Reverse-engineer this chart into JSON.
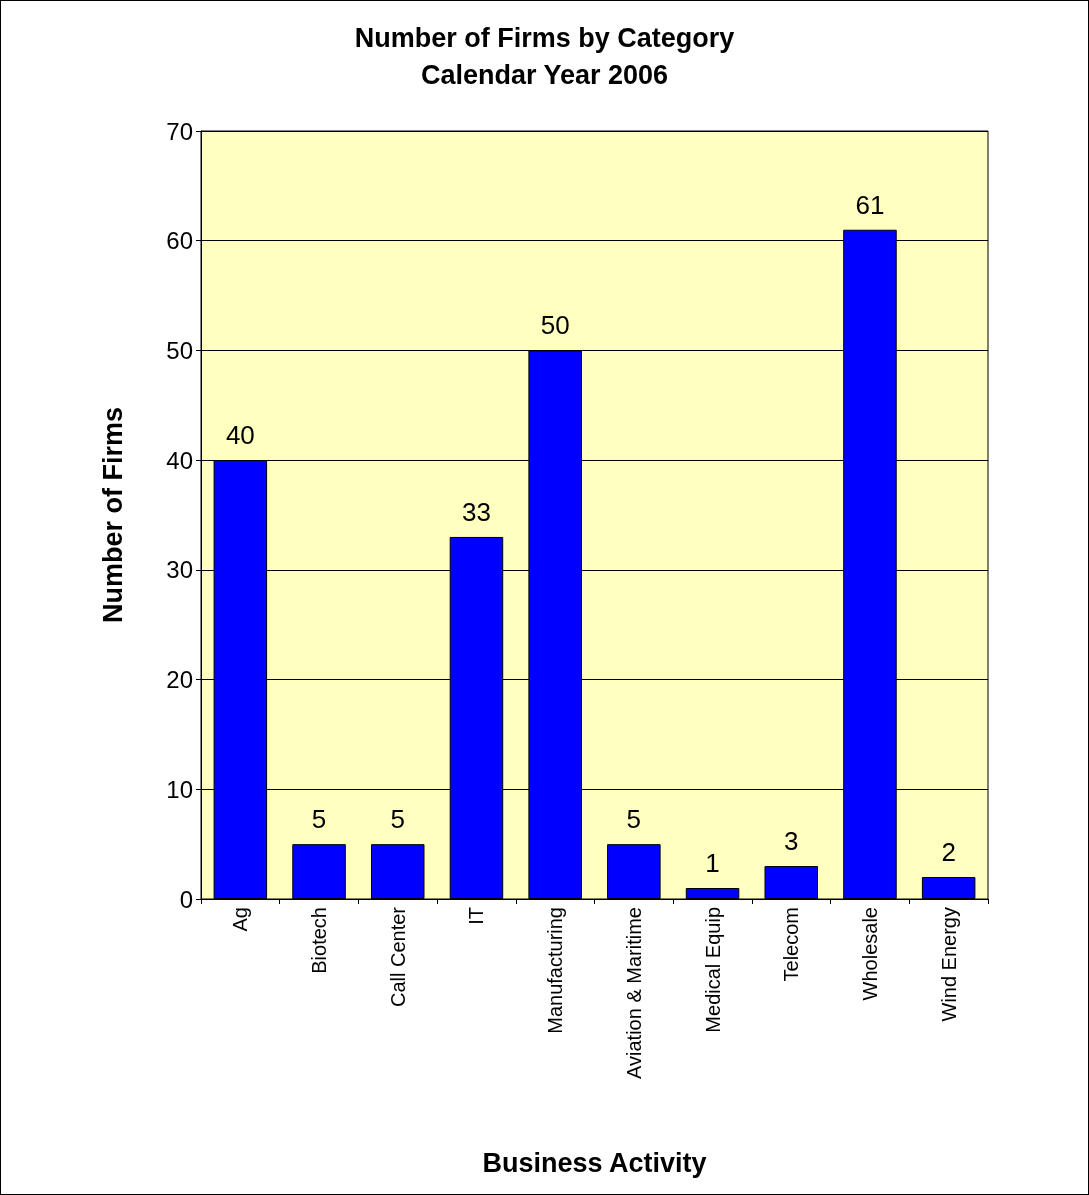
{
  "chart_data": {
    "type": "bar",
    "title": "Number of Firms by Category",
    "subtitle": "Calendar Year 2006",
    "xlabel": "Business Activity",
    "ylabel": "Number of Firms",
    "categories": [
      "Ag",
      "Biotech",
      "Call Center",
      "IT",
      "Manufacturing",
      "Aviation & Maritime",
      "Medical Equip",
      "Telecom",
      "Wholesale",
      "Wind Energy"
    ],
    "values": [
      40,
      5,
      5,
      33,
      50,
      5,
      1,
      3,
      61,
      2
    ],
    "color": "#0000ff",
    "ylim": [
      0,
      70
    ],
    "yticks": [
      0,
      10,
      20,
      30,
      40,
      50,
      60,
      70
    ],
    "grid": "y",
    "data_labels": true
  }
}
